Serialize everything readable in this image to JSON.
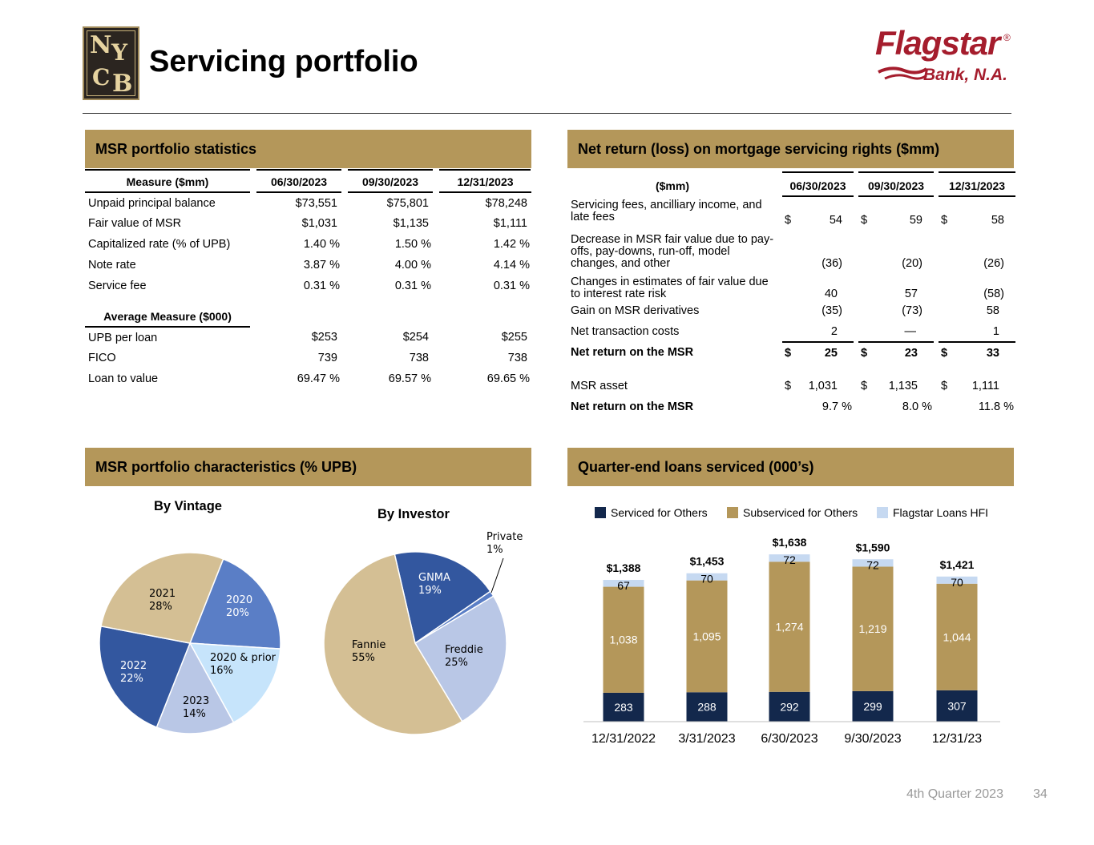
{
  "header": {
    "title": "Servicing portfolio",
    "nycb_logo_letters": [
      "N",
      "Y",
      "C",
      "B"
    ],
    "brand_name": "Flagstar",
    "brand_sub": "Bank, N.A."
  },
  "colors": {
    "section_header_bg": "#b4975a",
    "navy": "#13284c",
    "gold": "#b4975a",
    "light_blue": "#c6d9f1",
    "brand_red": "#a51d2d"
  },
  "msr_stats": {
    "header": "MSR portfolio statistics",
    "columns": [
      "Measure ($mm)",
      "06/30/2023",
      "09/30/2023",
      "12/31/2023"
    ],
    "rows": [
      [
        "Unpaid principal balance",
        "$73,551",
        "$75,801",
        "$78,248"
      ],
      [
        "Fair value of MSR",
        "$1,031",
        "$1,135",
        "$1,111"
      ],
      [
        "Capitalized rate (% of UPB)",
        "1.40 %",
        "1.50 %",
        "1.42 %"
      ],
      [
        "Note rate",
        "3.87 %",
        "4.00 %",
        "4.14 %"
      ],
      [
        "Service fee",
        "0.31 %",
        "0.31 %",
        "0.31 %"
      ]
    ],
    "avg_header": "Average Measure ($000)",
    "avg_rows": [
      [
        "UPB per loan",
        "$253",
        "$254",
        "$255"
      ],
      [
        "FICO",
        "739",
        "738",
        "738"
      ],
      [
        "Loan to value",
        "69.47 %",
        "69.57 %",
        "69.65 %"
      ]
    ]
  },
  "net_return": {
    "header": "Net return (loss) on mortgage servicing rights ($mm)",
    "columns": [
      "($mm)",
      "06/30/2023",
      "09/30/2023",
      "12/31/2023"
    ],
    "rows": [
      {
        "label": "Servicing fees, ancilliary income, and late fees",
        "v1": "54",
        "v2": "59",
        "v3": "58",
        "dollar": "$"
      },
      {
        "label": "Decrease in MSR fair value due to pay-offs, pay-downs, run-off, model changes, and other",
        "v1": "(36)",
        "v2": "(20)",
        "v3": "(26)"
      },
      {
        "label": "Changes in estimates of fair value due to interest rate risk",
        "v1": "40",
        "v2": "57",
        "v3": "(58)"
      },
      {
        "label": "Gain on MSR derivatives",
        "v1": "(35)",
        "v2": "(73)",
        "v3": "58"
      },
      {
        "label": "Net transaction costs",
        "v1": "2",
        "v2": "—",
        "v3": "1"
      },
      {
        "label": "Net return on the MSR",
        "v1": "25",
        "v2": "23",
        "v3": "33",
        "dollar": "$",
        "bold": true
      }
    ],
    "asset_row": {
      "label": "MSR asset",
      "v1": "1,031",
      "v2": "1,135",
      "v3": "1,111",
      "dollar": "$"
    },
    "pct_row": {
      "label": "Net return on the MSR",
      "v1": "9.7 %",
      "v2": "8.0 %",
      "v3": "11.8 %"
    }
  },
  "characteristics": {
    "header": "MSR portfolio characteristics (% UPB)",
    "vintage_title": "By Vintage",
    "investor_title": "By Investor"
  },
  "loans_serviced": {
    "header": "Quarter-end loans serviced (000’s)"
  },
  "chart_data": [
    {
      "type": "pie",
      "title": "By Vintage",
      "labels": [
        "2020",
        "2020 & prior",
        "2023",
        "2022",
        "2021"
      ],
      "values": [
        20,
        16,
        14,
        22,
        28
      ],
      "value_labels": [
        "20%",
        "16%",
        "14%",
        "22%",
        "28%"
      ],
      "colors": [
        "#5a7ec6",
        "#c6e4fb",
        "#b9c7e6",
        "#33579f",
        "#d4bf94"
      ]
    },
    {
      "type": "pie",
      "title": "By Investor",
      "labels": [
        "GNMA",
        "Private",
        "Freddie",
        "Fannie"
      ],
      "values": [
        19,
        1,
        25,
        55
      ],
      "value_labels": [
        "19%",
        "1%",
        "25%",
        "55%"
      ],
      "colors": [
        "#33579f",
        "#5a7ec6",
        "#b9c7e6",
        "#d4bf94"
      ]
    },
    {
      "type": "bar",
      "stacked": true,
      "title": "",
      "categories": [
        "12/31/2022",
        "3/31/2023",
        "6/30/2023",
        "9/30/2023",
        "12/31/23"
      ],
      "series": [
        {
          "name": "Serviced for Others",
          "values": [
            283,
            288,
            292,
            299,
            307
          ],
          "labels": [
            "283",
            "288",
            "292",
            "299",
            "307"
          ],
          "color": "#13284c"
        },
        {
          "name": "Subserviced for Others",
          "values": [
            1038,
            1095,
            1274,
            1219,
            1044
          ],
          "labels": [
            "1,038",
            "1,095",
            "1,274",
            "1,219",
            "1,044"
          ],
          "color": "#b4975a"
        },
        {
          "name": "Flagstar Loans HFI",
          "values": [
            67,
            70,
            72,
            72,
            70
          ],
          "labels": [
            "67",
            "70",
            "72",
            "72",
            "70"
          ],
          "color": "#c6d9f1"
        }
      ],
      "totals": [
        "$1,388",
        "$1,453",
        "$1,638",
        "$1,590",
        "$1,421"
      ],
      "legend": "top"
    }
  ],
  "footer": {
    "label": "4th Quarter 2023",
    "page": "34"
  }
}
